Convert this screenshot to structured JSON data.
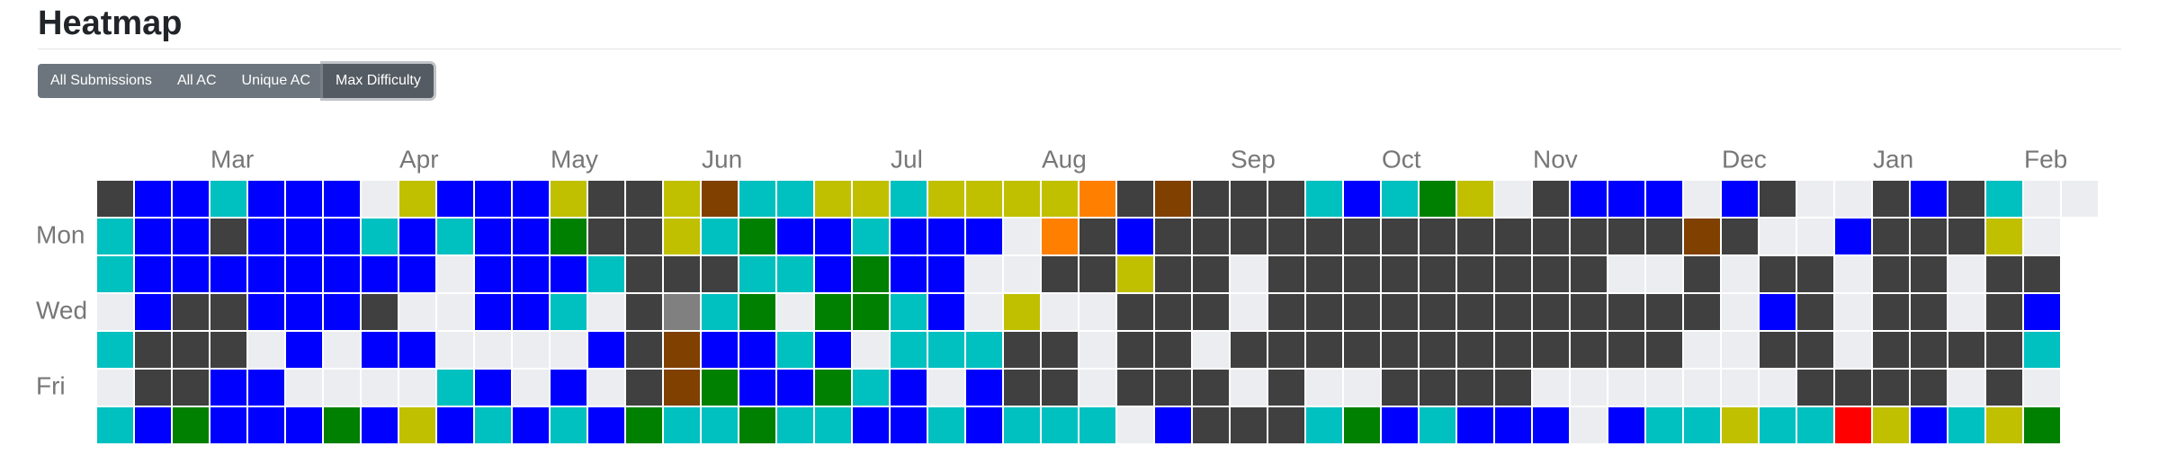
{
  "header": {
    "title": "Heatmap"
  },
  "buttons": [
    {
      "label": "All Submissions",
      "active": false
    },
    {
      "label": "All AC",
      "active": false
    },
    {
      "label": "Unique AC",
      "active": false
    },
    {
      "label": "Max Difficulty",
      "active": true
    }
  ],
  "heatmap": {
    "months": [
      null,
      null,
      null,
      "Mar",
      null,
      null,
      null,
      null,
      "Apr",
      null,
      null,
      null,
      "May",
      null,
      null,
      null,
      "Jun",
      null,
      null,
      null,
      null,
      "Jul",
      null,
      null,
      null,
      "Aug",
      null,
      null,
      null,
      null,
      "Sep",
      null,
      null,
      null,
      "Oct",
      null,
      null,
      null,
      "Nov",
      null,
      null,
      null,
      null,
      "Dec",
      null,
      null,
      null,
      "Jan",
      null,
      null,
      null,
      "Feb",
      null,
      null
    ],
    "days": [
      null,
      "Mon",
      null,
      "Wed",
      null,
      "Fri",
      null
    ],
    "rows": [
      [
        "#404040",
        "#0000ff",
        "#0000ff",
        "#00c0c0",
        "#0000ff",
        "#0000ff",
        "#0000ff",
        "#ebedf0",
        "#c0c000",
        "#0000ff",
        "#0000ff",
        "#0000ff",
        "#c0c000",
        "#404040",
        "#404040",
        "#c0c000",
        "#804000",
        "#00c0c0",
        "#00c0c0",
        "#c0c000",
        "#c0c000",
        "#00c0c0",
        "#c0c000",
        "#c0c000",
        "#c0c000",
        "#c0c000",
        "#ff8000",
        "#404040",
        "#804000",
        "#404040",
        "#404040",
        "#404040",
        "#00c0c0",
        "#0000ff",
        "#00c0c0",
        "#008000",
        "#c0c000",
        "#ebedf0",
        "#404040",
        "#0000ff",
        "#0000ff",
        "#0000ff",
        "#ebedf0",
        "#0000ff",
        "#404040",
        "#ebedf0",
        "#ebedf0",
        "#404040",
        "#0000ff",
        "#404040",
        "#00c0c0",
        "#ebedf0",
        "#ebedf0"
      ],
      [
        "#00c0c0",
        "#0000ff",
        "#0000ff",
        "#404040",
        "#0000ff",
        "#0000ff",
        "#0000ff",
        "#00c0c0",
        "#0000ff",
        "#00c0c0",
        "#0000ff",
        "#0000ff",
        "#008000",
        "#404040",
        "#404040",
        "#c0c000",
        "#00c0c0",
        "#008000",
        "#0000ff",
        "#0000ff",
        "#00c0c0",
        "#0000ff",
        "#0000ff",
        "#0000ff",
        "#ebedf0",
        "#ff8000",
        "#404040",
        "#0000ff",
        "#404040",
        "#404040",
        "#404040",
        "#404040",
        "#404040",
        "#404040",
        "#404040",
        "#404040",
        "#404040",
        "#404040",
        "#404040",
        "#404040",
        "#404040",
        "#404040",
        "#804000",
        "#404040",
        "#ebedf0",
        "#ebedf0",
        "#0000ff",
        "#404040",
        "#404040",
        "#404040",
        "#c0c000",
        "#ebedf0"
      ],
      [
        "#00c0c0",
        "#0000ff",
        "#0000ff",
        "#0000ff",
        "#0000ff",
        "#0000ff",
        "#0000ff",
        "#0000ff",
        "#0000ff",
        "#ebedf0",
        "#0000ff",
        "#0000ff",
        "#0000ff",
        "#00c0c0",
        "#404040",
        "#404040",
        "#404040",
        "#00c0c0",
        "#00c0c0",
        "#0000ff",
        "#008000",
        "#0000ff",
        "#0000ff",
        "#ebedf0",
        "#ebedf0",
        "#404040",
        "#404040",
        "#c0c000",
        "#404040",
        "#404040",
        "#ebedf0",
        "#404040",
        "#404040",
        "#404040",
        "#404040",
        "#404040",
        "#404040",
        "#404040",
        "#404040",
        "#404040",
        "#ebedf0",
        "#ebedf0",
        "#404040",
        "#ebedf0",
        "#404040",
        "#404040",
        "#ebedf0",
        "#404040",
        "#404040",
        "#ebedf0",
        "#404040",
        "#404040"
      ],
      [
        "#ebedf0",
        "#0000ff",
        "#404040",
        "#404040",
        "#0000ff",
        "#0000ff",
        "#0000ff",
        "#404040",
        "#ebedf0",
        "#ebedf0",
        "#0000ff",
        "#0000ff",
        "#00c0c0",
        "#ebedf0",
        "#404040",
        "#808080",
        "#00c0c0",
        "#008000",
        "#ebedf0",
        "#008000",
        "#008000",
        "#00c0c0",
        "#0000ff",
        "#ebedf0",
        "#c0c000",
        "#ebedf0",
        "#ebedf0",
        "#404040",
        "#404040",
        "#404040",
        "#ebedf0",
        "#404040",
        "#404040",
        "#404040",
        "#404040",
        "#404040",
        "#404040",
        "#404040",
        "#404040",
        "#404040",
        "#404040",
        "#404040",
        "#404040",
        "#ebedf0",
        "#0000ff",
        "#404040",
        "#ebedf0",
        "#404040",
        "#404040",
        "#ebedf0",
        "#404040",
        "#0000ff"
      ],
      [
        "#00c0c0",
        "#404040",
        "#404040",
        "#404040",
        "#ebedf0",
        "#0000ff",
        "#ebedf0",
        "#0000ff",
        "#0000ff",
        "#ebedf0",
        "#ebedf0",
        "#ebedf0",
        "#ebedf0",
        "#0000ff",
        "#404040",
        "#804000",
        "#0000ff",
        "#0000ff",
        "#00c0c0",
        "#0000ff",
        "#ebedf0",
        "#00c0c0",
        "#00c0c0",
        "#00c0c0",
        "#404040",
        "#404040",
        "#ebedf0",
        "#404040",
        "#404040",
        "#ebedf0",
        "#404040",
        "#404040",
        "#404040",
        "#404040",
        "#404040",
        "#404040",
        "#404040",
        "#404040",
        "#404040",
        "#404040",
        "#404040",
        "#404040",
        "#ebedf0",
        "#ebedf0",
        "#404040",
        "#404040",
        "#ebedf0",
        "#404040",
        "#404040",
        "#404040",
        "#404040",
        "#00c0c0"
      ],
      [
        "#ebedf0",
        "#404040",
        "#404040",
        "#0000ff",
        "#0000ff",
        "#ebedf0",
        "#ebedf0",
        "#ebedf0",
        "#ebedf0",
        "#00c0c0",
        "#0000ff",
        "#ebedf0",
        "#0000ff",
        "#ebedf0",
        "#404040",
        "#804000",
        "#008000",
        "#0000ff",
        "#0000ff",
        "#008000",
        "#00c0c0",
        "#0000ff",
        "#ebedf0",
        "#0000ff",
        "#404040",
        "#404040",
        "#ebedf0",
        "#404040",
        "#404040",
        "#404040",
        "#ebedf0",
        "#404040",
        "#ebedf0",
        "#ebedf0",
        "#404040",
        "#404040",
        "#404040",
        "#404040",
        "#ebedf0",
        "#ebedf0",
        "#ebedf0",
        "#ebedf0",
        "#ebedf0",
        "#ebedf0",
        "#ebedf0",
        "#404040",
        "#404040",
        "#404040",
        "#404040",
        "#ebedf0",
        "#404040",
        "#ebedf0"
      ],
      [
        "#00c0c0",
        "#0000ff",
        "#008000",
        "#0000ff",
        "#0000ff",
        "#0000ff",
        "#008000",
        "#0000ff",
        "#c0c000",
        "#0000ff",
        "#00c0c0",
        "#0000ff",
        "#00c0c0",
        "#0000ff",
        "#008000",
        "#00c0c0",
        "#00c0c0",
        "#008000",
        "#00c0c0",
        "#00c0c0",
        "#0000ff",
        "#0000ff",
        "#00c0c0",
        "#0000ff",
        "#00c0c0",
        "#00c0c0",
        "#00c0c0",
        "#ebedf0",
        "#0000ff",
        "#404040",
        "#404040",
        "#404040",
        "#00c0c0",
        "#008000",
        "#0000ff",
        "#00c0c0",
        "#0000ff",
        "#0000ff",
        "#0000ff",
        "#ebedf0",
        "#0000ff",
        "#00c0c0",
        "#00c0c0",
        "#c0c000",
        "#00c0c0",
        "#00c0c0",
        "#ff0000",
        "#c0c000",
        "#0000ff",
        "#00c0c0",
        "#c0c000",
        "#008000"
      ]
    ]
  }
}
